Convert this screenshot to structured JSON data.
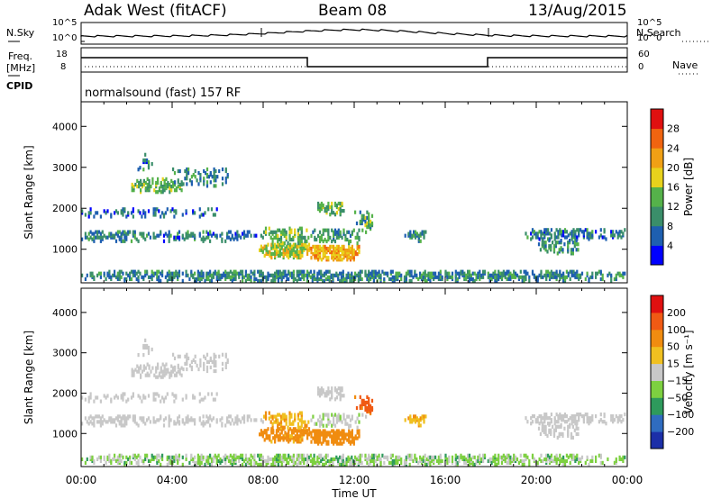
{
  "header": {
    "radar": "Adak West (fitACF)",
    "beam": "Beam 08",
    "date": "13/Aug/2015"
  },
  "panels": {
    "nsky_label": "N.Sky",
    "nsky_ticks": [
      "10^5",
      "10^0"
    ],
    "nsearch_label": "N.Search",
    "nsearch_ticks": [
      "10^5",
      "10^0"
    ],
    "freq_label": "Freq.",
    "freq_unit": "[MHz]",
    "freq_ticks": [
      "18",
      "8"
    ],
    "nave_label": "Nave",
    "nave_ticks": [
      "60",
      "0"
    ],
    "cpid_label": "CPID",
    "cpid_value": "normalsound (fast) 157 RF"
  },
  "chart_data": [
    {
      "type": "heatmap",
      "name": "power",
      "ylabel": "Slant Range [km]",
      "yticks": [
        1000,
        2000,
        3000,
        4000
      ],
      "ylim": [
        180,
        4600
      ],
      "xlabel": "Time UT",
      "xticks": [
        "00:00",
        "04:00",
        "08:00",
        "12:00",
        "16:00",
        "20:00",
        "00:00"
      ],
      "xlim_hours": [
        0,
        24
      ],
      "colorbar": {
        "label": "Power [dB]",
        "ticks": [
          "28",
          "24",
          "20",
          "16",
          "12",
          "8",
          "4"
        ],
        "colors": [
          "#0000ff",
          "#1e5fb0",
          "#3a8e6a",
          "#55b24a",
          "#e8d21c",
          "#f0a015",
          "#f06410",
          "#e01010"
        ]
      }
    },
    {
      "type": "heatmap",
      "name": "velocity",
      "ylabel": "Slant Range [km]",
      "yticks": [
        1000,
        2000,
        3000,
        4000
      ],
      "ylim": [
        180,
        4600
      ],
      "xlabel": "Time UT",
      "xticks": [
        "00:00",
        "04:00",
        "08:00",
        "12:00",
        "16:00",
        "20:00",
        "00:00"
      ],
      "xlim_hours": [
        0,
        24
      ],
      "colorbar": {
        "label": "Velocity [m s⁻¹]",
        "ticks": [
          "200",
          "100",
          "50",
          "15",
          "−15",
          "−50",
          "−100",
          "−200"
        ],
        "colors": [
          "#1c2fa8",
          "#2f6cc0",
          "#2e9a5c",
          "#7dd040",
          "#c8c8c8",
          "#f0c020",
          "#f08c10",
          "#f05a14",
          "#e01010"
        ]
      }
    }
  ]
}
